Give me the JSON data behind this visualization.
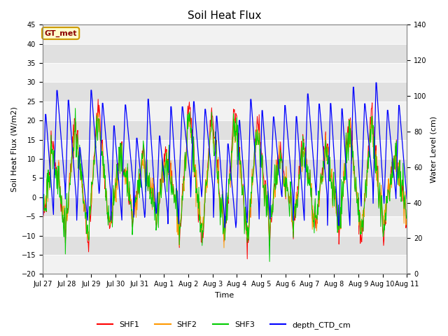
{
  "title": "Soil Heat Flux",
  "ylabel_left": "Soil Heat Flux (W/m2)",
  "ylabel_right": "Water Level (cm)",
  "xlabel": "Time",
  "annotation_text": "GT_met",
  "left_ylim": [
    -20,
    45
  ],
  "right_ylim": [
    0,
    140
  ],
  "xtick_labels": [
    "Jul 27",
    "Jul 28",
    "Jul 29",
    "Jul 30",
    "Jul 31",
    "Aug 1",
    "Aug 2",
    "Aug 3",
    "Aug 4",
    "Aug 5",
    "Aug 6",
    "Aug 7",
    "Aug 8",
    "Aug 9",
    "Aug 10",
    "Aug 11"
  ],
  "series_colors": {
    "SHF1": "#ff0000",
    "SHF2": "#ff9900",
    "SHF3": "#00cc00",
    "depth_CTD_cm": "#0000ff"
  },
  "fig_bg": "#ffffff",
  "plot_bg": "#e8e8e8",
  "band_light": "#f2f2f2",
  "band_dark": "#e0e0e0",
  "grid_color": "#cccccc"
}
